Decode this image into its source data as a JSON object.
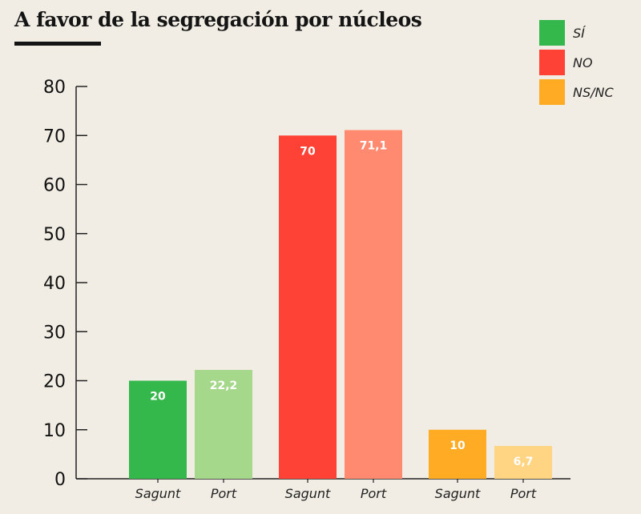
{
  "chart_data": {
    "type": "bar",
    "title": "A favor de la segregación por núcleos",
    "xlabel": "",
    "ylabel": "",
    "ylim": [
      0,
      80
    ],
    "yticks": [
      0,
      10,
      20,
      30,
      40,
      50,
      60,
      70,
      80
    ],
    "grid": false,
    "legend_position": "top-right",
    "groups": [
      {
        "name": "SÍ",
        "color": "#35b84b",
        "bars": [
          {
            "category": "Sagunt",
            "value": 20,
            "label": "20",
            "color": "#35b84b"
          },
          {
            "category": "Port",
            "value": 22.2,
            "label": "22,2",
            "color": "#a6d88c"
          }
        ]
      },
      {
        "name": "NO",
        "color": "#ff4136",
        "bars": [
          {
            "category": "Sagunt",
            "value": 70,
            "label": "70",
            "color": "#ff4136"
          },
          {
            "category": "Port",
            "value": 71.1,
            "label": "71,1",
            "color": "#ff8a70"
          }
        ]
      },
      {
        "name": "NS/NC",
        "color": "#ffab24",
        "bars": [
          {
            "category": "Sagunt",
            "value": 10,
            "label": "10",
            "color": "#ffab24"
          },
          {
            "category": "Port",
            "value": 6.7,
            "label": "6,7",
            "color": "#ffd583"
          }
        ]
      }
    ]
  }
}
